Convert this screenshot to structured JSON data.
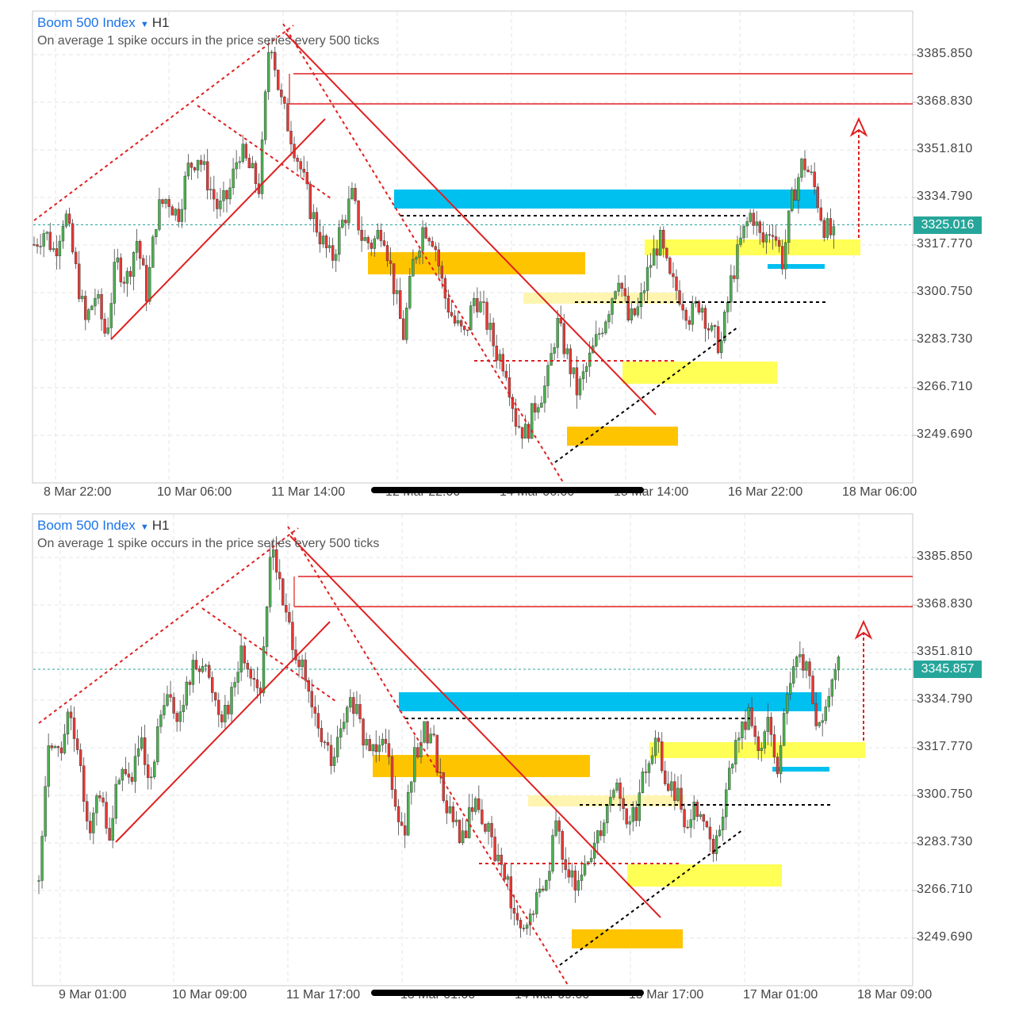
{
  "colors": {
    "bull": "#4caf50",
    "bear": "#e53935",
    "trend_red": "#e02020",
    "blue_zone": "#00c0f0",
    "orange_zone": "#ffc400",
    "yellow_zone": "#ffff55",
    "pale_zone": "#fff5b0",
    "price_tag": "#26a69a"
  },
  "panels": [
    {
      "symbol": "Boom 500 Index",
      "timeframe": "H1",
      "subtitle": "On average 1 spike occurs in the price series every 500 ticks",
      "current_price": "3325.016",
      "y_ticks": [
        "3385.850",
        "3368.830",
        "3351.810",
        "3334.790",
        "3317.770",
        "3300.750",
        "3283.730",
        "3266.710",
        "3249.690"
      ],
      "x_ticks": [
        "8 Mar 22:00",
        "10 Mar 06:00",
        "11 Mar 14:00",
        "12 Mar 22:00",
        "14 Mar 06:00",
        "15 Mar 14:00",
        "16 Mar 22:00",
        "18 Mar 06:00"
      ]
    },
    {
      "symbol": "Boom 500 Index",
      "timeframe": "H1",
      "subtitle": "On average 1 spike occurs in the price series every 500 ticks",
      "current_price": "3345.857",
      "y_ticks": [
        "3385.850",
        "3368.830",
        "3351.810",
        "3334.790",
        "3317.770",
        "3300.750",
        "3283.730",
        "3266.710",
        "3249.690"
      ],
      "x_ticks": [
        "9 Mar 01:00",
        "10 Mar 09:00",
        "11 Mar 17:00",
        "13 Mar 01:00",
        "14 Mar 09:00",
        "15 Mar 17:00",
        "17 Mar 01:00",
        "18 Mar 09:00"
      ]
    }
  ],
  "chart_data": [
    {
      "type": "candlestick",
      "title": "Boom 500 Index H1",
      "y_ticks": [
        3385.85,
        3368.83,
        3351.81,
        3334.79,
        3317.77,
        3300.75,
        3283.73,
        3266.71,
        3249.69
      ],
      "ylim": [
        3238,
        3403
      ],
      "x_ticks": [
        "8 Mar 22:00",
        "10 Mar 06:00",
        "11 Mar 14:00",
        "12 Mar 22:00",
        "14 Mar 06:00",
        "15 Mar 14:00",
        "16 Mar 22:00",
        "18 Mar 06:00"
      ],
      "current_price": 3325.016,
      "close_path": [
        3318,
        3323,
        3315,
        3330,
        3310,
        3290,
        3300,
        3285,
        3312,
        3305,
        3320,
        3300,
        3330,
        3335,
        3328,
        3345,
        3350,
        3340,
        3330,
        3336,
        3352,
        3345,
        3338,
        3395,
        3370,
        3358,
        3345,
        3330,
        3320,
        3312,
        3325,
        3335,
        3320,
        3318,
        3325,
        3305,
        3285,
        3312,
        3325,
        3320,
        3300,
        3290,
        3285,
        3300,
        3292,
        3280,
        3275,
        3255,
        3250,
        3262,
        3268,
        3290,
        3278,
        3265,
        3275,
        3285,
        3295,
        3308,
        3290,
        3295,
        3310,
        3320,
        3305,
        3300,
        3292,
        3298,
        3286,
        3282,
        3305,
        3320,
        3330,
        3318,
        3325,
        3312,
        3335,
        3348,
        3340,
        3325,
        3320
      ],
      "overlays": [
        "descending channel",
        "ascending channel",
        "resistance lines",
        "supply/demand zones",
        "projection arrow"
      ]
    },
    {
      "type": "candlestick",
      "title": "Boom 500 Index H1",
      "y_ticks": [
        3385.85,
        3368.83,
        3351.81,
        3334.79,
        3317.77,
        3300.75,
        3283.73,
        3266.71,
        3249.69
      ],
      "ylim": [
        3238,
        3403
      ],
      "x_ticks": [
        "9 Mar 01:00",
        "10 Mar 09:00",
        "11 Mar 17:00",
        "13 Mar 01:00",
        "14 Mar 09:00",
        "15 Mar 17:00",
        "17 Mar 01:00",
        "18 Mar 09:00"
      ],
      "current_price": 3345.857,
      "close_path": [
        3270,
        3322,
        3315,
        3330,
        3310,
        3290,
        3300,
        3285,
        3312,
        3305,
        3320,
        3300,
        3330,
        3335,
        3328,
        3345,
        3350,
        3340,
        3330,
        3336,
        3352,
        3345,
        3338,
        3395,
        3370,
        3358,
        3345,
        3330,
        3320,
        3312,
        3325,
        3335,
        3320,
        3318,
        3325,
        3305,
        3285,
        3312,
        3325,
        3320,
        3300,
        3290,
        3285,
        3300,
        3292,
        3280,
        3275,
        3255,
        3250,
        3262,
        3268,
        3290,
        3278,
        3265,
        3275,
        3285,
        3295,
        3308,
        3290,
        3295,
        3310,
        3320,
        3305,
        3300,
        3292,
        3298,
        3286,
        3282,
        3305,
        3320,
        3330,
        3318,
        3325,
        3312,
        3335,
        3350,
        3345,
        3322,
        3335,
        3346
      ],
      "overlays": [
        "descending channel",
        "ascending channel",
        "resistance lines",
        "supply/demand zones",
        "projection arrow"
      ]
    }
  ]
}
